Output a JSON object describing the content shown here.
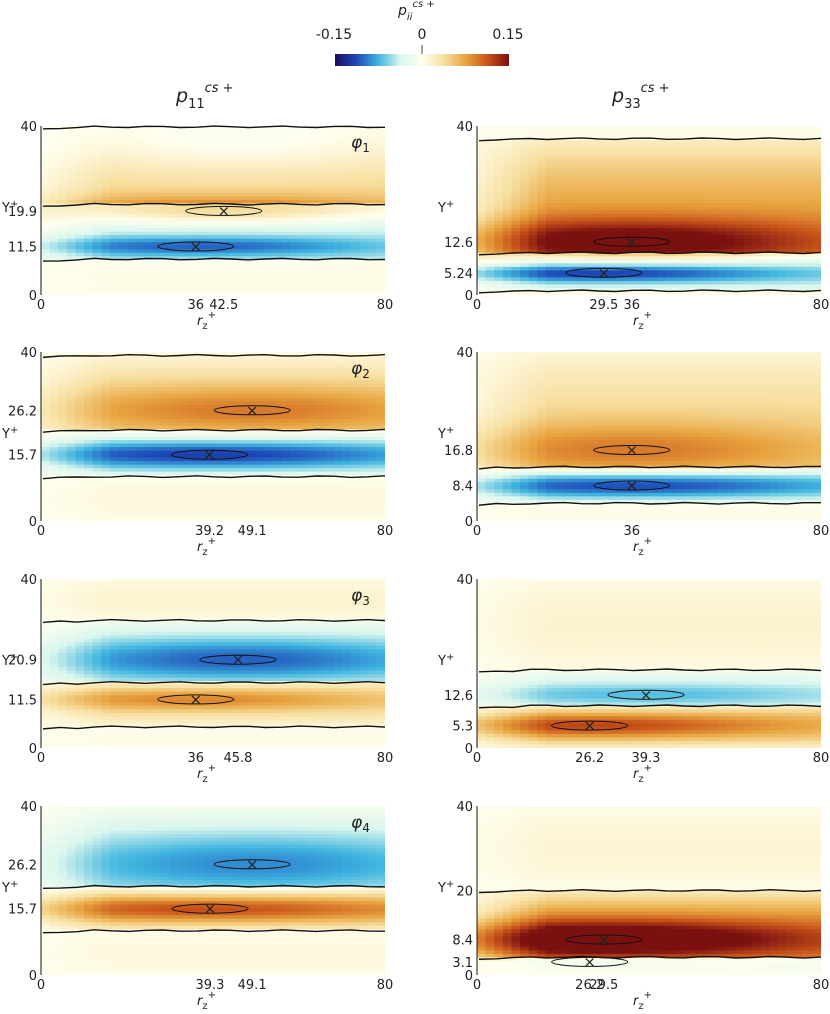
{
  "colorbar": {
    "title_main": "p",
    "title_sub": "ii",
    "title_sup": "cs +",
    "min_label": "-0.15",
    "mid_label": "0",
    "max_label": "0.15",
    "range": [
      -0.15,
      0.15
    ],
    "stops": [
      "#1a0a5c",
      "#1f49b8",
      "#3fb5df",
      "#d9f6ee",
      "#ffffee",
      "#f7dfa0",
      "#e8a540",
      "#c9541a",
      "#7a1010"
    ]
  },
  "columns": [
    {
      "main": "p",
      "sub": "11",
      "sup": "cs +"
    },
    {
      "main": "p",
      "sub": "33",
      "sup": "cs +"
    }
  ],
  "chart_data": [
    {
      "type": "heatmap",
      "column": 0,
      "row": 0,
      "panel_label": "φ",
      "panel_label_sub": "1",
      "xlabel": "r",
      "xlabel_sub": "z",
      "xlabel_sup": "+",
      "ylabel": "Y",
      "ylabel_sup": "+",
      "xlim": [
        0,
        80
      ],
      "ylim": [
        0,
        40
      ],
      "x_ticks": [
        "0",
        "36",
        "42.5",
        "80"
      ],
      "x_tick_vals": [
        0,
        36,
        42.5,
        80
      ],
      "y_ticks": [
        "0",
        "11.5",
        "19.9",
        "40"
      ],
      "y_tick_vals": [
        0,
        11.5,
        19.9,
        40
      ],
      "bands": [
        {
          "y0": 0,
          "y1": 8.5,
          "amp": 0.004
        },
        {
          "y0": 8.5,
          "y1": 21.5,
          "amp": -0.045,
          "cy": 11.5
        },
        {
          "y0": 21.5,
          "y1": 39.8,
          "amp": 0.045,
          "cy": 19.9
        },
        {
          "y0": 39.8,
          "y1": 40,
          "amp": -0.015,
          "cy": 40
        }
      ],
      "lobes": [
        {
          "cx": 36,
          "cy": 11.5,
          "amp": -0.06,
          "sx": 30,
          "sy": 1.6
        },
        {
          "cx": 42.5,
          "cy": 19.9,
          "amp": 0.06,
          "sx": 30,
          "sy": 2.4
        },
        {
          "cx": 46,
          "cy": 35,
          "amp": -0.025,
          "sx": 30,
          "sy": 5
        }
      ],
      "peaks": [
        {
          "x": 36,
          "y": 11.5
        },
        {
          "x": 42.5,
          "y": 19.9
        }
      ]
    },
    {
      "type": "heatmap",
      "column": 1,
      "row": 0,
      "xlabel": "r",
      "xlabel_sub": "z",
      "xlabel_sup": "+",
      "ylabel": "Y",
      "ylabel_sup": "+",
      "xlim": [
        0,
        80
      ],
      "ylim": [
        0,
        40
      ],
      "x_ticks": [
        "0",
        "29.5",
        "36",
        "80"
      ],
      "x_tick_vals": [
        0,
        29.5,
        36,
        80
      ],
      "y_ticks": [
        "0",
        "5.24",
        "12.6",
        "40"
      ],
      "y_tick_vals": [
        0,
        5.24,
        12.6,
        40
      ],
      "bands": [
        {
          "y0": 0,
          "y1": 1,
          "amp": 0.004
        },
        {
          "y0": 1,
          "y1": 10,
          "amp": -0.05,
          "cy": 5.24
        },
        {
          "y0": 10,
          "y1": 37,
          "amp": 0.08,
          "cy": 12.6
        },
        {
          "y0": 37,
          "y1": 40,
          "amp": 0.004
        }
      ],
      "lobes": [
        {
          "cx": 29.5,
          "cy": 5.24,
          "amp": -0.08,
          "sx": 30,
          "sy": 1.5
        },
        {
          "cx": 36,
          "cy": 12.6,
          "amp": 0.09,
          "sx": 32,
          "sy": 3.8
        }
      ],
      "peaks": [
        {
          "x": 29.5,
          "y": 5.24
        },
        {
          "x": 36,
          "y": 12.6
        }
      ]
    },
    {
      "type": "heatmap",
      "column": 0,
      "row": 1,
      "panel_label": "φ",
      "panel_label_sub": "2",
      "xlabel": "r",
      "xlabel_sub": "z",
      "xlabel_sup": "+",
      "ylabel": "Y",
      "ylabel_sup": "+",
      "xlim": [
        0,
        80
      ],
      "ylim": [
        0,
        40
      ],
      "x_ticks": [
        "0",
        "39.2",
        "49.1",
        "80"
      ],
      "x_tick_vals": [
        0,
        39.2,
        49.1,
        80
      ],
      "y_ticks": [
        "0",
        "15.7",
        "26.2",
        "40"
      ],
      "y_tick_vals": [
        0,
        15.7,
        26.2,
        40
      ],
      "bands": [
        {
          "y0": 0,
          "y1": 10.5,
          "amp": 0.008
        },
        {
          "y0": 10.5,
          "y1": 21.5,
          "amp": -0.05,
          "cy": 15.7
        },
        {
          "y0": 21.5,
          "y1": 39.2,
          "amp": 0.045,
          "cy": 26.2
        },
        {
          "y0": 39.2,
          "y1": 40,
          "amp": 0.004
        }
      ],
      "lobes": [
        {
          "cx": 39.2,
          "cy": 15.7,
          "amp": -0.07,
          "sx": 34,
          "sy": 2.2
        },
        {
          "cx": 49.1,
          "cy": 26.2,
          "amp": 0.05,
          "sx": 32,
          "sy": 4
        }
      ],
      "peaks": [
        {
          "x": 39.2,
          "y": 15.7
        },
        {
          "x": 49.1,
          "y": 26.2
        }
      ]
    },
    {
      "type": "heatmap",
      "column": 1,
      "row": 1,
      "xlabel": "r",
      "xlabel_sub": "z",
      "xlabel_sup": "+",
      "ylabel": "Y",
      "ylabel_sup": "+",
      "xlim": [
        0,
        80
      ],
      "ylim": [
        0,
        40
      ],
      "x_ticks": [
        "0",
        "36",
        "80"
      ],
      "x_tick_vals": [
        0,
        36,
        80
      ],
      "y_ticks": [
        "0",
        "8.4",
        "16.8",
        "40"
      ],
      "y_tick_vals": [
        0,
        8.4,
        16.8,
        40
      ],
      "bands": [
        {
          "y0": 0,
          "y1": 4.2,
          "amp": 0.004
        },
        {
          "y0": 4.2,
          "y1": 12.8,
          "amp": -0.05,
          "cy": 8.4
        },
        {
          "y0": 12.8,
          "y1": 40,
          "amp": 0.045,
          "cy": 16.8
        }
      ],
      "lobes": [
        {
          "cx": 36,
          "cy": 8.4,
          "amp": -0.07,
          "sx": 34,
          "sy": 2
        },
        {
          "cx": 36,
          "cy": 16.8,
          "amp": 0.05,
          "sx": 32,
          "sy": 4.5
        }
      ],
      "peaks": [
        {
          "x": 36,
          "y": 8.4
        },
        {
          "x": 36,
          "y": 16.8
        }
      ]
    },
    {
      "type": "heatmap",
      "column": 0,
      "row": 2,
      "panel_label": "φ",
      "panel_label_sub": "3",
      "xlabel": "r",
      "xlabel_sub": "z",
      "xlabel_sup": "+",
      "ylabel": "Y",
      "ylabel_sup": "+",
      "xlim": [
        0,
        80
      ],
      "ylim": [
        0,
        40
      ],
      "x_ticks": [
        "0",
        "36",
        "45.8",
        "80"
      ],
      "x_tick_vals": [
        0,
        36,
        45.8,
        80
      ],
      "y_ticks": [
        "0",
        "11.5",
        "20.9",
        "40"
      ],
      "y_tick_vals": [
        0,
        11.5,
        20.9,
        40
      ],
      "bands": [
        {
          "y0": 0,
          "y1": 5,
          "amp": 0.004
        },
        {
          "y0": 5,
          "y1": 15.5,
          "amp": 0.04,
          "cy": 11.5
        },
        {
          "y0": 15.5,
          "y1": 30.2,
          "amp": -0.045,
          "cy": 20.9
        },
        {
          "y0": 30.2,
          "y1": 40,
          "amp": 0.015
        }
      ],
      "lobes": [
        {
          "cx": 36,
          "cy": 11.5,
          "amp": 0.05,
          "sx": 30,
          "sy": 1.8
        },
        {
          "cx": 45.8,
          "cy": 20.9,
          "amp": -0.06,
          "sx": 32,
          "sy": 3.5
        }
      ],
      "peaks": [
        {
          "x": 36,
          "y": 11.5
        },
        {
          "x": 45.8,
          "y": 20.9
        }
      ]
    },
    {
      "type": "heatmap",
      "column": 1,
      "row": 2,
      "xlabel": "r",
      "xlabel_sub": "z",
      "xlabel_sup": "+",
      "ylabel": "Y",
      "ylabel_sup": "+",
      "xlim": [
        0,
        80
      ],
      "ylim": [
        0,
        40
      ],
      "x_ticks": [
        "0",
        "26.2",
        "39.3",
        "80"
      ],
      "x_tick_vals": [
        0,
        26.2,
        39.3,
        80
      ],
      "y_ticks": [
        "0",
        "5.3",
        "12.6",
        "40"
      ],
      "y_tick_vals": [
        0,
        5.3,
        12.6,
        40
      ],
      "bands": [
        {
          "y0": 0,
          "y1": 10,
          "amp": 0.06,
          "cy": 5.3
        },
        {
          "y0": 10,
          "y1": 18.5,
          "amp": -0.035,
          "cy": 12.6
        },
        {
          "y0": 18.5,
          "y1": 40,
          "amp": 0.015
        }
      ],
      "lobes": [
        {
          "cx": 26.2,
          "cy": 5.3,
          "amp": 0.06,
          "sx": 30,
          "sy": 2
        },
        {
          "cx": 39.3,
          "cy": 12.6,
          "amp": -0.035,
          "sx": 32,
          "sy": 2
        }
      ],
      "peaks": [
        {
          "x": 26.2,
          "y": 5.3
        },
        {
          "x": 39.3,
          "y": 12.6
        }
      ]
    },
    {
      "type": "heatmap",
      "column": 0,
      "row": 3,
      "panel_label": "φ",
      "panel_label_sub": "4",
      "xlabel": "r",
      "xlabel_sub": "z",
      "xlabel_sup": "+",
      "ylabel": "Y",
      "ylabel_sup": "+",
      "xlim": [
        0,
        80
      ],
      "ylim": [
        0,
        40
      ],
      "x_ticks": [
        "0",
        "39.3",
        "49.1",
        "80"
      ],
      "x_tick_vals": [
        0,
        39.3,
        49.1,
        80
      ],
      "y_ticks": [
        "0",
        "15.7",
        "26.2",
        "40"
      ],
      "y_tick_vals": [
        0,
        15.7,
        26.2,
        40
      ],
      "bands": [
        {
          "y0": 0,
          "y1": 10.5,
          "amp": 0.008
        },
        {
          "y0": 10.5,
          "y1": 21,
          "amp": 0.06,
          "cy": 15.7
        },
        {
          "y0": 21,
          "y1": 40,
          "amp": -0.04,
          "cy": 26.2
        }
      ],
      "lobes": [
        {
          "cx": 39.3,
          "cy": 15.7,
          "amp": 0.06,
          "sx": 34,
          "sy": 2
        },
        {
          "cx": 49.1,
          "cy": 26.2,
          "amp": -0.05,
          "sx": 34,
          "sy": 5
        }
      ],
      "peaks": [
        {
          "x": 39.3,
          "y": 15.7
        },
        {
          "x": 49.1,
          "y": 26.2
        }
      ]
    },
    {
      "type": "heatmap",
      "column": 1,
      "row": 3,
      "xlabel": "r",
      "xlabel_sub": "z",
      "xlabel_sup": "+",
      "ylabel": "Y",
      "ylabel_sup": "+",
      "xlim": [
        0,
        80
      ],
      "ylim": [
        0,
        40
      ],
      "x_ticks": [
        "0",
        "26.2",
        "29.5",
        "80"
      ],
      "x_tick_vals": [
        0,
        26.2,
        29.5,
        80
      ],
      "y_ticks": [
        "0",
        "3.1",
        "8.4",
        "20",
        "40"
      ],
      "y_tick_vals": [
        0,
        3.1,
        8.4,
        20,
        40
      ],
      "bands": [
        {
          "y0": 0,
          "y1": 4.2,
          "amp": -0.015,
          "cy": 3.1
        },
        {
          "y0": 4.2,
          "y1": 20,
          "amp": 0.09,
          "cy": 8.4
        },
        {
          "y0": 20,
          "y1": 40,
          "amp": 0.012
        }
      ],
      "lobes": [
        {
          "cx": 26.2,
          "cy": 3.1,
          "amp": -0.02,
          "sx": 20,
          "sy": 0.8
        },
        {
          "cx": 29.5,
          "cy": 8.4,
          "amp": 0.1,
          "sx": 34,
          "sy": 3.2
        }
      ],
      "peaks": [
        {
          "x": 26.2,
          "y": 3.1
        },
        {
          "x": 29.5,
          "y": 8.4
        }
      ]
    }
  ]
}
